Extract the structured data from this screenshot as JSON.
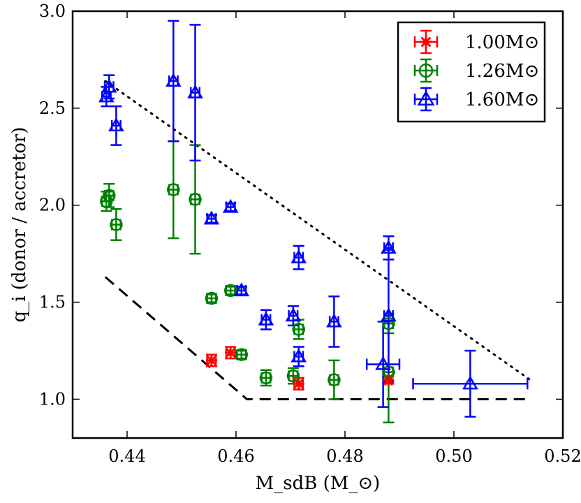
{
  "chart_data": {
    "type": "scatter",
    "xlabel": "M_sdB (M_⊙)",
    "ylabel": "q_i (donor / accretor)",
    "xlim": [
      0.43,
      0.52
    ],
    "ylim": [
      0.8,
      3.0
    ],
    "xticks": [
      "0.44",
      "0.46",
      "0.48",
      "0.50",
      "0.52"
    ],
    "yticks": [
      "1.0",
      "1.5",
      "2.0",
      "2.5",
      "3.0"
    ],
    "legend_position": "top-right",
    "grid": false,
    "series": [
      {
        "name": "1.00M⊙",
        "color": "#ff0000",
        "marker": "asterisk",
        "points": [
          {
            "x": 0.4555,
            "y": 1.2,
            "xerr": 0.0008,
            "yerr": 0.03
          },
          {
            "x": 0.459,
            "y": 1.24,
            "xerr": 0.0008,
            "yerr": 0.03
          },
          {
            "x": 0.4715,
            "y": 1.08,
            "xerr": 0.0008,
            "yerr": 0.03
          },
          {
            "x": 0.488,
            "y": 1.1,
            "xerr": 0.0006,
            "yerr": 0.02
          }
        ]
      },
      {
        "name": "1.26M⊙",
        "color": "#008000",
        "marker": "circle",
        "points": [
          {
            "x": 0.4362,
            "y": 2.02,
            "xerr": 0.0008,
            "yerr": 0.05
          },
          {
            "x": 0.4367,
            "y": 2.05,
            "xerr": 0.0008,
            "yerr": 0.06
          },
          {
            "x": 0.438,
            "y": 1.9,
            "xerr": 0.0008,
            "yerr": 0.08
          },
          {
            "x": 0.4485,
            "y": 2.08,
            "xerr": 0.0008,
            "yerr": 0.25
          },
          {
            "x": 0.4525,
            "y": 2.03,
            "xerr": 0.0008,
            "yerr": 0.28
          },
          {
            "x": 0.4555,
            "y": 1.52,
            "xerr": 0.0008,
            "yerr": 0.02
          },
          {
            "x": 0.459,
            "y": 1.56,
            "xerr": 0.0008,
            "yerr": 0.02
          },
          {
            "x": 0.461,
            "y": 1.23,
            "xerr": 0.0008,
            "yerr": 0.02
          },
          {
            "x": 0.4655,
            "y": 1.11,
            "xerr": 0.0008,
            "yerr": 0.04
          },
          {
            "x": 0.4705,
            "y": 1.12,
            "xerr": 0.0008,
            "yerr": 0.04
          },
          {
            "x": 0.4715,
            "y": 1.36,
            "xerr": 0.0008,
            "yerr": 0.05
          },
          {
            "x": 0.478,
            "y": 1.1,
            "xerr": 0.0008,
            "yerr": 0.1
          },
          {
            "x": 0.488,
            "y": 1.14,
            "xerr": 0.0008,
            "yerr": 0.26
          },
          {
            "x": 0.488,
            "y": 1.39,
            "xerr": 0.0008,
            "yerr": 0.05
          }
        ]
      },
      {
        "name": "1.60M⊙",
        "color": "#0000ff",
        "marker": "triangle",
        "points": [
          {
            "x": 0.4362,
            "y": 2.56,
            "xerr": 0.0008,
            "yerr": 0.05
          },
          {
            "x": 0.4367,
            "y": 2.61,
            "xerr": 0.0008,
            "yerr": 0.06
          },
          {
            "x": 0.438,
            "y": 2.41,
            "xerr": 0.0008,
            "yerr": 0.1
          },
          {
            "x": 0.4485,
            "y": 2.64,
            "xerr": 0.0008,
            "yerr": 0.31
          },
          {
            "x": 0.4525,
            "y": 2.58,
            "xerr": 0.0008,
            "yerr": 0.35
          },
          {
            "x": 0.4555,
            "y": 1.93,
            "xerr": 0.0008,
            "yerr": 0.02
          },
          {
            "x": 0.459,
            "y": 1.99,
            "xerr": 0.0008,
            "yerr": 0.02
          },
          {
            "x": 0.461,
            "y": 1.56,
            "xerr": 0.0008,
            "yerr": 0.02
          },
          {
            "x": 0.4655,
            "y": 1.41,
            "xerr": 0.0008,
            "yerr": 0.05
          },
          {
            "x": 0.4705,
            "y": 1.43,
            "xerr": 0.0008,
            "yerr": 0.05
          },
          {
            "x": 0.4715,
            "y": 1.22,
            "xerr": 0.0008,
            "yerr": 0.05
          },
          {
            "x": 0.4715,
            "y": 1.73,
            "xerr": 0.0008,
            "yerr": 0.06
          },
          {
            "x": 0.478,
            "y": 1.4,
            "xerr": 0.0008,
            "yerr": 0.13
          },
          {
            "x": 0.487,
            "y": 1.18,
            "xerr": 0.003,
            "yerr": 0.22
          },
          {
            "x": 0.488,
            "y": 1.43,
            "xerr": 0.0008,
            "yerr": 0.34
          },
          {
            "x": 0.488,
            "y": 1.78,
            "xerr": 0.0008,
            "yerr": 0.06
          },
          {
            "x": 0.503,
            "y": 1.08,
            "xerr": 0.0105,
            "yerr": 0.17
          }
        ]
      }
    ],
    "reference_lines": [
      {
        "style": "dashed",
        "points": [
          [
            0.436,
            1.63
          ],
          [
            0.462,
            1.0
          ],
          [
            0.514,
            1.0
          ]
        ]
      },
      {
        "style": "dotted",
        "points": [
          [
            0.436,
            2.64
          ],
          [
            0.514,
            1.1
          ]
        ]
      }
    ]
  }
}
